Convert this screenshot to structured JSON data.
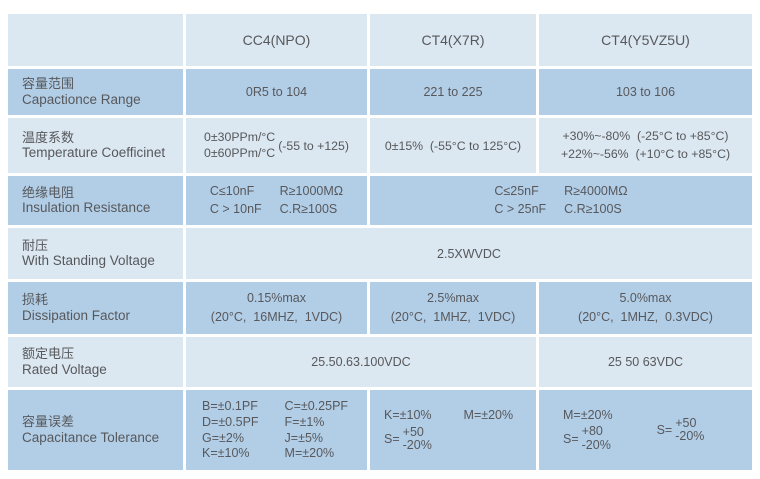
{
  "colors": {
    "row_light": "#dbe7f1",
    "row_dark": "#b2cee7",
    "grid_line": "#ffffff",
    "text": "#57585b",
    "page_background": "#ffffff"
  },
  "header": {
    "columns": [
      "",
      "CC4(NPO)",
      "CT4(X7R)",
      "CT4(Y5VZ5U)"
    ]
  },
  "rows": {
    "capacitance_range": {
      "label_zh": "容量范围",
      "label_en": "Capactionce Range",
      "npo": "0R5 to 104",
      "x7r": "221 to 225",
      "y5v": "103 to 106"
    },
    "temperature_coefficient": {
      "label_zh": "温度系数",
      "label_en": "Temperature Coefficinet",
      "npo_line1": "0±30PPm/°C",
      "npo_line2": "0±60PPm/°C",
      "npo_range": "(-55 to +125)",
      "x7r": "0±15%  (-55°C to 125°C)",
      "y5v_line1": "+30%~-80%  (-25°C to +85°C)",
      "y5v_line2": "+22%~-56%  (+10°C to +85°C)"
    },
    "insulation_resistance": {
      "label_zh": "绝缘电阻",
      "label_en": "Insulation Resistance",
      "npo": [
        [
          "C≤10nF",
          "R≥1000MΩ"
        ],
        [
          "C > 10nF",
          "C.R≥100S"
        ]
      ],
      "merged": [
        [
          "C≤25nF",
          "R≥4000MΩ"
        ],
        [
          "C > 25nF",
          "C.R≥100S"
        ]
      ]
    },
    "withstanding_voltage": {
      "label_zh": "耐压",
      "label_en": "With Standing Voltage",
      "value": "2.5XWVDC"
    },
    "dissipation_factor": {
      "label_zh": "损耗",
      "label_en": "Dissipation Factor",
      "npo_line1": "0.15%max",
      "npo_line2": "(20°C,  16MHZ,  1VDC)",
      "x7r_line1": "2.5%max",
      "x7r_line2": "(20°C,  1MHZ,  1VDC)",
      "y5v_line1": "5.0%max",
      "y5v_line2": "(20°C,  1MHZ,  0.3VDC)"
    },
    "rated_voltage": {
      "label_zh": "额定电压",
      "label_en": "Rated Voltage",
      "npo_x7r": "25.50.63.100VDC",
      "y5v": "25 50 63VDC"
    },
    "capacitance_tolerance": {
      "label_zh": "容量误差",
      "label_en": "Capacitance Tolerance",
      "npo_items": [
        "B=±0.1PF",
        "C=±0.25PF",
        "D=±0.5PF",
        "F=±1%",
        "G=±2%",
        "J=±5%",
        "K=±10%",
        "M=±20%"
      ],
      "x7r": {
        "k": "K=±10%",
        "m": "M=±20%",
        "s_label": "S=",
        "s_top": "+50",
        "s_bottom": "-20%"
      },
      "y5v": {
        "m": "M=±20%",
        "s1_label": "S=",
        "s1_top": "+80",
        "s1_bottom": "-20%",
        "s2_label": "S=",
        "s2_top": "+50",
        "s2_bottom": "-20%"
      }
    }
  }
}
